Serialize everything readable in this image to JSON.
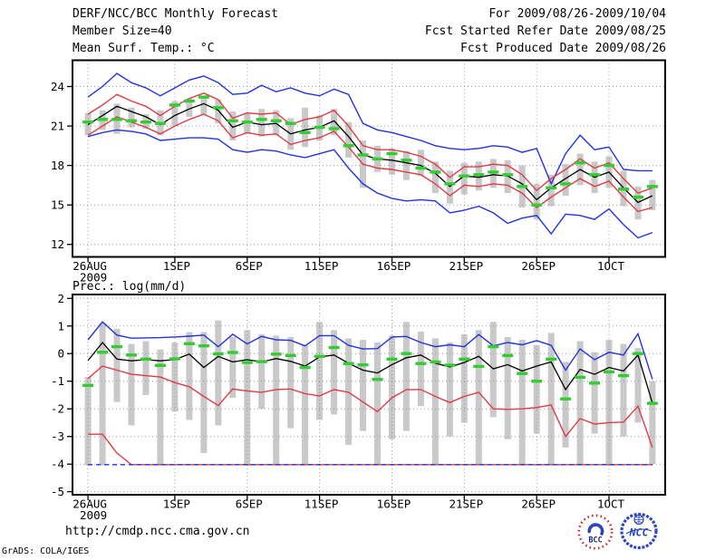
{
  "header": {
    "title": "DERF/NCC/BCC Monthly Forecast",
    "member_size": "Member Size=40",
    "valid_range": "For 2009/08/26-2009/10/04",
    "refer_date": "Fcst Started Refer Date 2009/08/25",
    "produced_date": "Fcst Produced Date 2009/08/26"
  },
  "footer": {
    "url": "http://cmdp.ncc.cma.gov.cn",
    "credit": "GrADS: COLA/IGES"
  },
  "logos": {
    "bcc": "BCC",
    "ncc": "NCC"
  },
  "colors": {
    "blue": "#2233dd",
    "red": "#e03c46",
    "black": "#000000",
    "green": "#33cc33",
    "bar": "#c9c9c9",
    "grid": "#9a9a9a",
    "logo_red": "#cc2a2a",
    "logo_navy": "#1a2a7a",
    "logo_blue": "#2b46c0"
  },
  "x_axis": {
    "n_days": 40,
    "start_date": "26AUG2009",
    "end_date": "04OCT2009",
    "tick_days": [
      0,
      6,
      11,
      16,
      21,
      26,
      31,
      36
    ],
    "tick_labels": [
      "26AUG",
      "1SEP",
      "6SEP",
      "11SEP",
      "16SEP",
      "21SEP",
      "26SEP",
      "1OCT"
    ],
    "year_label": "2009"
  },
  "chart_data": [
    {
      "id": "temp",
      "type": "line",
      "title": "Mean Surf. Temp.: °C",
      "ylim": [
        11.05,
        26.0
      ],
      "yticks": [
        24,
        21,
        18,
        15,
        12
      ],
      "grid": true,
      "lines": [
        {
          "name": "max-blue-line",
          "color": "blue",
          "width": 1.4,
          "values": [
            23.2,
            24.0,
            25.0,
            24.3,
            23.9,
            23.3,
            23.9,
            24.5,
            24.8,
            24.3,
            23.4,
            23.5,
            24.1,
            23.6,
            23.9,
            23.5,
            23.3,
            23.8,
            23.4,
            21.2,
            20.7,
            20.5,
            20.2,
            19.9,
            19.5,
            19.3,
            19.2,
            19.3,
            19.5,
            19.4,
            19.0,
            19.3,
            16.6,
            18.9,
            20.3,
            19.2,
            19.4,
            17.7,
            17.6,
            17.6
          ]
        },
        {
          "name": "min-blue-line",
          "color": "blue",
          "width": 1.4,
          "values": [
            20.2,
            20.5,
            20.7,
            20.6,
            20.4,
            19.9,
            20.0,
            20.1,
            20.1,
            20.0,
            19.2,
            19.0,
            19.2,
            19.1,
            18.8,
            18.6,
            18.9,
            19.2,
            17.8,
            16.6,
            15.9,
            15.5,
            15.3,
            15.4,
            15.3,
            14.4,
            14.6,
            14.9,
            14.4,
            13.6,
            14.0,
            14.2,
            12.8,
            14.3,
            14.2,
            13.9,
            14.7,
            13.5,
            12.5,
            12.9
          ]
        },
        {
          "name": "upper-red-line",
          "color": "red",
          "width": 1.4,
          "values": [
            21.9,
            22.6,
            23.4,
            22.9,
            22.5,
            21.8,
            22.5,
            23.1,
            23.5,
            23.0,
            21.6,
            22.0,
            21.9,
            22.0,
            21.1,
            21.5,
            21.7,
            22.2,
            21.0,
            19.5,
            19.2,
            19.2,
            19.0,
            18.7,
            18.1,
            17.1,
            17.9,
            17.9,
            18.1,
            18.0,
            17.3,
            16.1,
            17.0,
            17.7,
            18.5,
            17.8,
            18.2,
            17.0,
            15.9,
            16.3
          ]
        },
        {
          "name": "lower-red-line",
          "color": "red",
          "width": 1.4,
          "values": [
            20.3,
            21.0,
            21.7,
            21.3,
            20.9,
            20.4,
            21.0,
            21.5,
            21.9,
            21.4,
            20.1,
            20.5,
            20.3,
            20.4,
            19.6,
            19.9,
            20.1,
            20.6,
            19.4,
            18.1,
            17.8,
            17.7,
            17.5,
            17.3,
            16.6,
            15.7,
            16.5,
            16.4,
            16.6,
            16.5,
            15.9,
            14.8,
            15.6,
            16.3,
            17.0,
            16.4,
            16.8,
            15.6,
            14.5,
            14.8
          ]
        },
        {
          "name": "ensemble-mean-line",
          "color": "black",
          "width": 1.3,
          "values": [
            21.1,
            21.8,
            22.5,
            22.1,
            21.7,
            21.1,
            21.8,
            22.3,
            22.7,
            22.2,
            20.9,
            21.3,
            21.1,
            21.2,
            20.4,
            20.7,
            20.9,
            21.4,
            20.2,
            18.8,
            18.5,
            18.4,
            18.2,
            18.0,
            17.4,
            16.4,
            17.2,
            17.1,
            17.3,
            17.2,
            16.6,
            15.4,
            16.3,
            17.0,
            17.7,
            17.1,
            17.5,
            16.3,
            15.2,
            15.7
          ]
        }
      ],
      "green_marks": [
        21.3,
        21.5,
        21.5,
        21.4,
        21.3,
        21.2,
        22.6,
        22.9,
        23.2,
        22.4,
        21.4,
        21.3,
        21.5,
        21.4,
        21.2,
        20.5,
        20.9,
        20.8,
        19.5,
        18.8,
        18.5,
        18.9,
        18.4,
        17.8,
        17.5,
        16.6,
        17.2,
        17.3,
        17.5,
        17.3,
        16.4,
        15.0,
        16.3,
        16.6,
        18.2,
        17.3,
        18.0,
        16.2,
        15.6,
        16.4
      ],
      "spread_bars": [
        [
          20.3,
          22.0
        ],
        [
          20.7,
          22.2
        ],
        [
          20.4,
          22.7
        ],
        [
          20.9,
          22.4
        ],
        [
          20.8,
          21.9
        ],
        [
          20.3,
          22.2
        ],
        [
          21.0,
          22.9
        ],
        [
          21.7,
          23.1
        ],
        [
          21.9,
          23.3
        ],
        [
          21.2,
          23.0
        ],
        [
          19.9,
          22.1
        ],
        [
          20.4,
          22.0
        ],
        [
          20.2,
          22.3
        ],
        [
          20.3,
          22.2
        ],
        [
          19.2,
          21.6
        ],
        [
          19.4,
          22.4
        ],
        [
          19.9,
          21.8
        ],
        [
          20.3,
          22.3
        ],
        [
          18.6,
          21.3
        ],
        [
          16.3,
          19.9
        ],
        [
          17.5,
          19.5
        ],
        [
          17.3,
          19.3
        ],
        [
          16.9,
          19.1
        ],
        [
          17.2,
          19.2
        ],
        [
          15.9,
          18.3
        ],
        [
          15.1,
          17.6
        ],
        [
          15.8,
          18.2
        ],
        [
          16.1,
          18.3
        ],
        [
          16.3,
          18.5
        ],
        [
          15.9,
          18.4
        ],
        [
          14.8,
          18.0
        ],
        [
          13.9,
          16.6
        ],
        [
          14.9,
          17.3
        ],
        [
          15.7,
          18.1
        ],
        [
          16.5,
          18.9
        ],
        [
          15.9,
          18.3
        ],
        [
          16.3,
          18.7
        ],
        [
          14.9,
          17.6
        ],
        [
          13.9,
          16.4
        ],
        [
          14.6,
          16.9
        ]
      ]
    },
    {
      "id": "prec",
      "type": "line",
      "title": "Prec.: log(mm/d)",
      "ylim": [
        -5.11,
        2.14
      ],
      "yticks": [
        2,
        1,
        0,
        -1,
        -2,
        -3,
        -4,
        -5
      ],
      "grid": true,
      "lines": [
        {
          "name": "lower-red-line",
          "color": "red",
          "width": 1.4,
          "values": [
            -2.92,
            -2.92,
            -3.6,
            -4.02,
            -4.02,
            -4.02,
            -4.02,
            -4.02,
            -4.02,
            -4.02,
            -4.02,
            -4.02,
            -4.02,
            -4.02,
            -4.02,
            -4.02,
            -4.02,
            -4.02,
            -4.02,
            -4.02,
            -4.02,
            -4.02,
            -4.02,
            -4.02,
            -4.02,
            -4.02,
            -4.02,
            -4.02,
            -4.02,
            -4.02,
            -4.02,
            -4.02,
            -4.02,
            -4.02,
            -4.02,
            -4.02,
            -4.02,
            -4.02,
            -4.02,
            -4.02
          ]
        },
        {
          "name": "min-blue-line",
          "color": "blue",
          "width": 1.4,
          "dash": "5 4",
          "values": [
            -4.02,
            -4.02,
            -4.02,
            -4.02,
            -4.02,
            -4.02,
            -4.02,
            -4.02,
            -4.02,
            -4.02,
            -4.02,
            -4.02,
            -4.02,
            -4.02,
            -4.02,
            -4.02,
            -4.02,
            -4.02,
            -4.02,
            -4.02,
            -4.02,
            -4.02,
            -4.02,
            -4.02,
            -4.02,
            -4.02,
            -4.02,
            -4.02,
            -4.02,
            -4.02,
            -4.02,
            -4.02,
            -4.02,
            -4.02,
            -4.02,
            -4.02,
            -4.02,
            -4.02,
            -4.02,
            -4.02
          ]
        },
        {
          "name": "mid-red-line",
          "color": "red",
          "width": 1.4,
          "values": [
            -0.9,
            -0.45,
            -0.6,
            -0.75,
            -0.8,
            -0.85,
            -1.05,
            -1.2,
            -1.55,
            -1.88,
            -1.28,
            -1.35,
            -1.4,
            -1.3,
            -1.28,
            -1.45,
            -1.53,
            -1.3,
            -1.4,
            -1.75,
            -2.1,
            -1.6,
            -1.3,
            -1.3,
            -1.55,
            -1.77,
            -1.55,
            -1.4,
            -2.0,
            -2.02,
            -2.0,
            -1.95,
            -1.86,
            -3.0,
            -2.35,
            -2.55,
            -2.5,
            -2.48,
            -1.9,
            -3.4
          ]
        },
        {
          "name": "max-blue-line",
          "color": "blue",
          "width": 1.4,
          "values": [
            0.5,
            1.15,
            0.67,
            0.56,
            0.57,
            0.58,
            0.6,
            0.63,
            0.67,
            0.25,
            0.7,
            0.35,
            0.62,
            0.5,
            0.48,
            0.28,
            0.65,
            0.65,
            0.3,
            0.17,
            0.18,
            0.6,
            0.62,
            0.4,
            0.25,
            0.32,
            0.25,
            0.69,
            0.28,
            0.4,
            0.32,
            0.47,
            0.3,
            -0.6,
            0.17,
            -0.22,
            0.05,
            -0.05,
            0.72,
            -0.93
          ]
        },
        {
          "name": "ensemble-mean-line",
          "color": "black",
          "width": 1.3,
          "values": [
            -0.25,
            0.4,
            -0.2,
            -0.26,
            -0.22,
            -0.26,
            -0.22,
            -0.02,
            -0.5,
            -0.1,
            -0.3,
            -0.22,
            -0.3,
            -0.18,
            -0.28,
            -0.45,
            -0.12,
            -0.05,
            -0.35,
            -0.6,
            -0.7,
            -0.4,
            -0.15,
            -0.05,
            -0.35,
            -0.48,
            -0.32,
            -0.1,
            -0.55,
            -0.4,
            -0.63,
            -0.45,
            -0.3,
            -1.3,
            -0.57,
            -0.75,
            -0.5,
            -0.63,
            -0.05,
            -1.79
          ]
        }
      ],
      "green_marks": [
        -1.15,
        0.05,
        0.25,
        -0.05,
        -0.2,
        -0.43,
        -0.19,
        0.36,
        0.28,
        -0.01,
        0.04,
        -0.32,
        -0.29,
        -0.02,
        -0.07,
        -0.5,
        -0.1,
        0.22,
        -0.36,
        -0.41,
        -0.93,
        -0.2,
        0.0,
        -0.36,
        -0.3,
        -0.42,
        -0.2,
        -0.46,
        0.25,
        -0.07,
        -0.72,
        -1.0,
        -0.2,
        -1.64,
        -0.86,
        -1.07,
        -0.66,
        -0.8,
        0.0,
        -1.8
      ],
      "spread_bars": [
        [
          -4.05,
          -0.85
        ],
        [
          -4.05,
          1.1
        ],
        [
          -1.75,
          0.9
        ],
        [
          -2.6,
          0.35
        ],
        [
          -1.5,
          0.45
        ],
        [
          -4.05,
          0.15
        ],
        [
          -2.1,
          0.4
        ],
        [
          -2.4,
          0.78
        ],
        [
          -3.6,
          0.78
        ],
        [
          -2.6,
          1.2
        ],
        [
          -1.6,
          0.6
        ],
        [
          -4.05,
          0.85
        ],
        [
          -2.0,
          0.7
        ],
        [
          -4.05,
          0.65
        ],
        [
          -2.7,
          0.6
        ],
        [
          -4.05,
          0.3
        ],
        [
          -2.4,
          1.15
        ],
        [
          -2.2,
          0.85
        ],
        [
          -3.3,
          0.55
        ],
        [
          -2.8,
          0.5
        ],
        [
          -4.05,
          0.4
        ],
        [
          -3.1,
          0.65
        ],
        [
          -2.8,
          1.15
        ],
        [
          -1.9,
          0.8
        ],
        [
          -4.05,
          0.55
        ],
        [
          -3.0,
          0.4
        ],
        [
          -2.5,
          0.7
        ],
        [
          -4.05,
          0.85
        ],
        [
          -2.3,
          1.15
        ],
        [
          -3.1,
          0.6
        ],
        [
          -4.05,
          0.5
        ],
        [
          -2.9,
          0.3
        ],
        [
          -4.05,
          0.75
        ],
        [
          -3.4,
          -0.3
        ],
        [
          -4.05,
          0.45
        ],
        [
          -2.9,
          0.05
        ],
        [
          -4.05,
          0.5
        ],
        [
          -3.0,
          0.35
        ],
        [
          -2.5,
          0.2
        ],
        [
          -4.0,
          -1.0
        ]
      ]
    }
  ]
}
